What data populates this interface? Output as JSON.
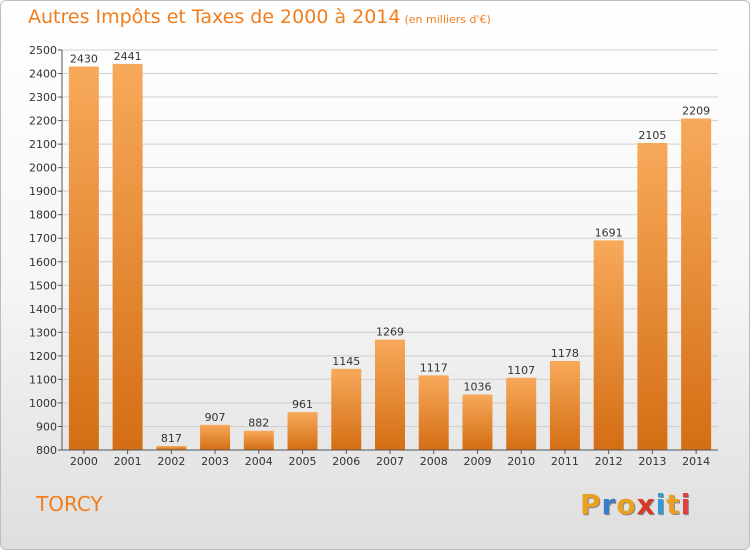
{
  "title": "Autres Impôts et Taxes de 2000 à 2014",
  "subtitle": "(en milliers d'€)",
  "place": "TORCY",
  "logo": {
    "text": "Proxiti",
    "colors": [
      "#e8a020",
      "#3a7cc8",
      "#e8a020",
      "#d83a2a",
      "#2f9bd8",
      "#e8a020",
      "#e04040"
    ]
  },
  "colors": {
    "bar_top": "#f7a95a",
    "bar_bottom": "#d46e14",
    "title": "#f07e1e"
  },
  "chart_data": {
    "type": "bar",
    "categories": [
      "2000",
      "2001",
      "2002",
      "2003",
      "2004",
      "2005",
      "2006",
      "2007",
      "2008",
      "2009",
      "2010",
      "2011",
      "2012",
      "2013",
      "2014"
    ],
    "values": [
      2430,
      2441,
      817,
      907,
      882,
      961,
      1145,
      1269,
      1117,
      1036,
      1107,
      1178,
      1691,
      2105,
      2209
    ],
    "yticks": [
      800,
      900,
      1000,
      1100,
      1200,
      1300,
      1400,
      1500,
      1600,
      1700,
      1800,
      1900,
      2000,
      2100,
      2200,
      2300,
      2400,
      2500
    ],
    "ylim": [
      800,
      2500
    ],
    "grid": true
  }
}
